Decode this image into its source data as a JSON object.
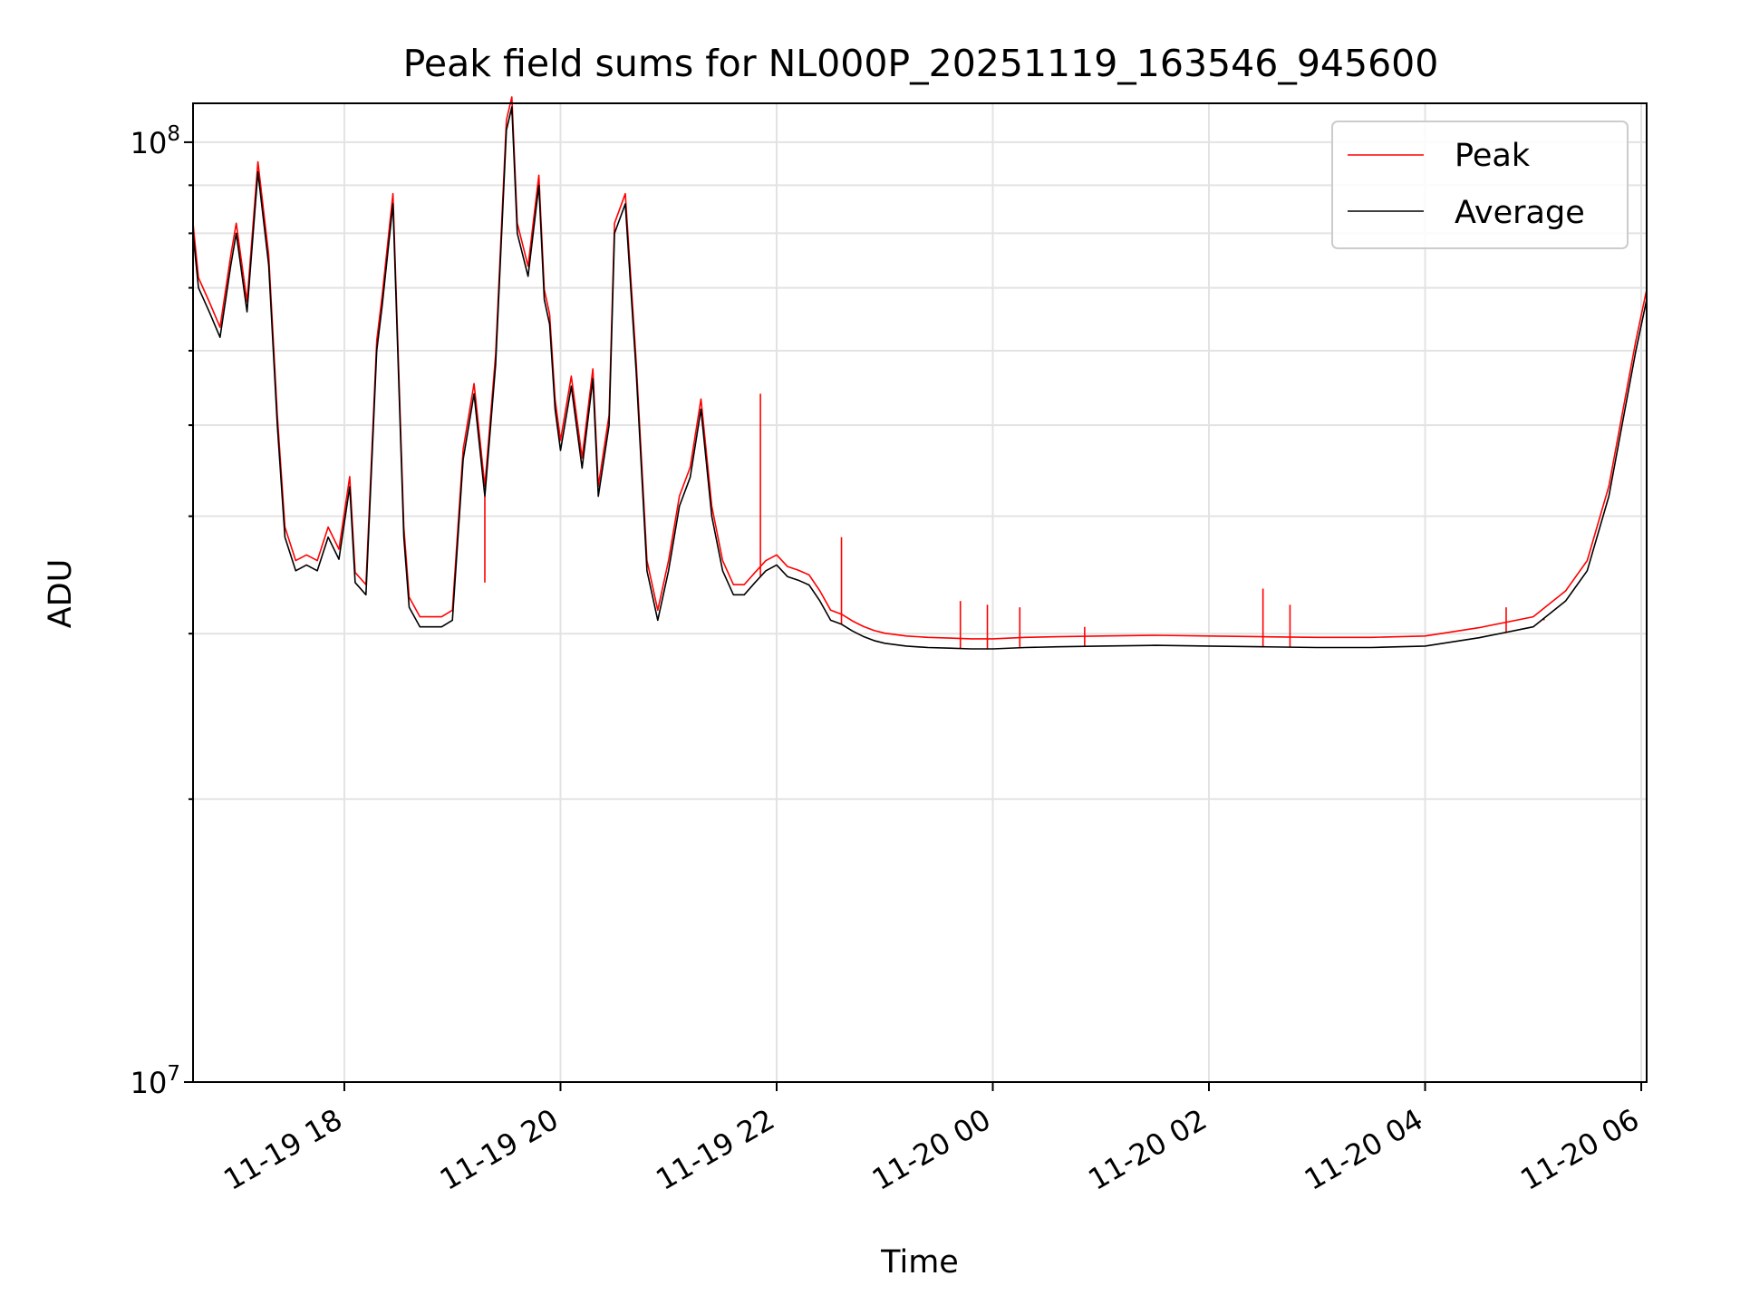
{
  "chart_data": {
    "type": "line",
    "title": "Peak field sums for NL000P_20251119_163546_945600",
    "xlabel": "Time",
    "ylabel": "ADU",
    "yscale": "log",
    "ylim": [
      10000000,
      110000000
    ],
    "xlim_hours": [
      16.6,
      30.05
    ],
    "grid": true,
    "legend_position": "top-right",
    "x_ticks": [
      {
        "hour": 18,
        "label": "11-19 18"
      },
      {
        "hour": 20,
        "label": "11-19 20"
      },
      {
        "hour": 22,
        "label": "11-19 22"
      },
      {
        "hour": 24,
        "label": "11-20 00"
      },
      {
        "hour": 26,
        "label": "11-20 02"
      },
      {
        "hour": 28,
        "label": "11-20 04"
      },
      {
        "hour": 30,
        "label": "11-20 06"
      }
    ],
    "y_ticks": [
      {
        "value": 10000000,
        "base": "10",
        "exp": "7"
      },
      {
        "value": 100000000,
        "base": "10",
        "exp": "8"
      }
    ],
    "series": [
      {
        "name": "Peak",
        "color": "#ff0000"
      },
      {
        "name": "Average",
        "color": "#000000"
      }
    ],
    "hours": [
      16.6,
      16.65,
      16.75,
      16.85,
      16.95,
      17.0,
      17.1,
      17.2,
      17.3,
      17.38,
      17.45,
      17.55,
      17.65,
      17.75,
      17.85,
      17.95,
      18.05,
      18.1,
      18.2,
      18.3,
      18.35,
      18.45,
      18.55,
      18.6,
      18.7,
      18.8,
      18.9,
      19.0,
      19.1,
      19.2,
      19.3,
      19.4,
      19.5,
      19.55,
      19.6,
      19.7,
      19.8,
      19.85,
      19.9,
      19.95,
      20.0,
      20.1,
      20.2,
      20.3,
      20.35,
      20.45,
      20.5,
      20.6,
      20.7,
      20.8,
      20.9,
      21.0,
      21.1,
      21.2,
      21.3,
      21.4,
      21.5,
      21.6,
      21.7,
      21.8,
      21.9,
      22.0,
      22.1,
      22.2,
      22.3,
      22.4,
      22.5,
      22.6,
      22.7,
      22.8,
      22.9,
      23.0,
      23.2,
      23.4,
      23.6,
      23.8,
      24.0,
      24.3,
      24.6,
      25.0,
      25.5,
      26.0,
      26.5,
      27.0,
      27.5,
      28.0,
      28.5,
      29.0,
      29.3,
      29.5,
      29.7,
      29.85,
      29.95,
      30.05
    ],
    "average": [
      80000000,
      70000000,
      66000000,
      62000000,
      74000000,
      80000000,
      66000000,
      93000000,
      74000000,
      50000000,
      38000000,
      35000000,
      35500000,
      35000000,
      38000000,
      36000000,
      43000000,
      34000000,
      33000000,
      60000000,
      67000000,
      86000000,
      38000000,
      32000000,
      30500000,
      30500000,
      30500000,
      31000000,
      46000000,
      54000000,
      42000000,
      58000000,
      103000000,
      109000000,
      80000000,
      72000000,
      90000000,
      68000000,
      64000000,
      52000000,
      47000000,
      55000000,
      45000000,
      56000000,
      42000000,
      50000000,
      80000000,
      86000000,
      57000000,
      35000000,
      31000000,
      35000000,
      41000000,
      44000000,
      52000000,
      40000000,
      35000000,
      33000000,
      33000000,
      34000000,
      35000000,
      35500000,
      34500000,
      34200000,
      33800000,
      32500000,
      31000000,
      30700000,
      30200000,
      29800000,
      29500000,
      29300000,
      29100000,
      29000000,
      28950000,
      28900000,
      28900000,
      29000000,
      29050000,
      29100000,
      29150000,
      29100000,
      29050000,
      29000000,
      29000000,
      29100000,
      29700000,
      30500000,
      32500000,
      35000000,
      42000000,
      52000000,
      60000000,
      68000000
    ],
    "peak_spikes": [
      {
        "hour": 19.55,
        "value": 107000000
      },
      {
        "hour": 18.55,
        "value": 38000000
      },
      {
        "hour": 19.3,
        "value": 34000000
      },
      {
        "hour": 21.85,
        "value": 54000000
      },
      {
        "hour": 22.6,
        "value": 38000000
      },
      {
        "hour": 23.7,
        "value": 32500000
      },
      {
        "hour": 23.95,
        "value": 32200000
      },
      {
        "hour": 24.25,
        "value": 32000000
      },
      {
        "hour": 24.85,
        "value": 30500000
      },
      {
        "hour": 26.5,
        "value": 33500000
      },
      {
        "hour": 26.75,
        "value": 32200000
      },
      {
        "hour": 28.75,
        "value": 32000000
      },
      {
        "hour": 29.1,
        "value": 31000000
      }
    ]
  }
}
